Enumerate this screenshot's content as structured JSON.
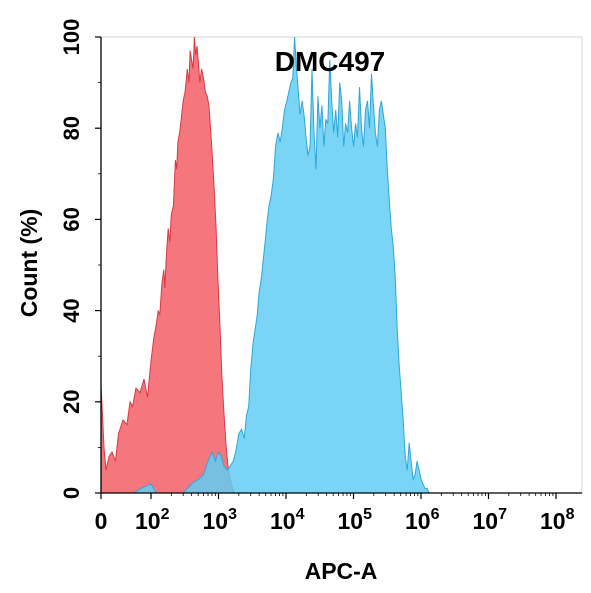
{
  "chart_data": {
    "type": "area",
    "title": "DMC497",
    "xlabel": "APC-A",
    "ylabel": "Count  (%)",
    "x_scale": "biexponential",
    "xlim": [
      0,
      100000000
    ],
    "ylim": [
      0,
      100
    ],
    "x_ticks": [
      {
        "value": 0,
        "base": "0",
        "exp": ""
      },
      {
        "value": 100,
        "base": "10",
        "exp": "2"
      },
      {
        "value": 1000,
        "base": "10",
        "exp": "3"
      },
      {
        "value": 10000,
        "base": "10",
        "exp": "4"
      },
      {
        "value": 100000,
        "base": "10",
        "exp": "5"
      },
      {
        "value": 1000000,
        "base": "10",
        "exp": "6"
      },
      {
        "value": 10000000,
        "base": "10",
        "exp": "7"
      },
      {
        "value": 100000000,
        "base": "10",
        "exp": "8"
      }
    ],
    "y_ticks": [
      0,
      20,
      40,
      60,
      80,
      100
    ],
    "grid": false,
    "series": [
      {
        "color": "#f4646b",
        "stroke": "#d83a44",
        "opacity": 0.88,
        "points": [
          [
            0,
            24
          ],
          [
            6,
            10
          ],
          [
            10,
            5
          ],
          [
            16,
            8
          ],
          [
            22,
            9
          ],
          [
            29,
            7
          ],
          [
            35,
            13
          ],
          [
            44,
            16
          ],
          [
            52,
            15
          ],
          [
            58,
            20
          ],
          [
            63,
            19
          ],
          [
            70,
            23
          ],
          [
            78,
            22
          ],
          [
            86,
            25
          ],
          [
            93,
            21
          ],
          [
            100,
            29
          ],
          [
            110,
            34
          ],
          [
            120,
            37
          ],
          [
            128,
            40
          ],
          [
            135,
            39
          ],
          [
            145,
            46
          ],
          [
            155,
            49
          ],
          [
            160,
            45
          ],
          [
            170,
            53
          ],
          [
            180,
            58
          ],
          [
            190,
            55
          ],
          [
            200,
            61
          ],
          [
            215,
            63
          ],
          [
            230,
            73
          ],
          [
            240,
            71
          ],
          [
            250,
            77
          ],
          [
            265,
            79
          ],
          [
            280,
            82
          ],
          [
            300,
            86
          ],
          [
            320,
            88
          ],
          [
            345,
            93
          ],
          [
            365,
            90
          ],
          [
            380,
            97
          ],
          [
            400,
            95
          ],
          [
            420,
            93
          ],
          [
            440,
            100
          ],
          [
            460,
            96
          ],
          [
            480,
            98
          ],
          [
            500,
            95
          ],
          [
            530,
            90
          ],
          [
            560,
            93
          ],
          [
            600,
            91
          ],
          [
            640,
            88
          ],
          [
            680,
            87
          ],
          [
            720,
            85
          ],
          [
            760,
            80
          ],
          [
            800,
            75
          ],
          [
            860,
            67
          ],
          [
            920,
            58
          ],
          [
            980,
            47
          ],
          [
            1050,
            37
          ],
          [
            1120,
            26
          ],
          [
            1200,
            18
          ],
          [
            1300,
            10
          ],
          [
            1400,
            5
          ],
          [
            1550,
            2
          ],
          [
            1700,
            0
          ]
        ]
      },
      {
        "color": "#62cdf3",
        "stroke": "#2ea7d8",
        "opacity": 0.85,
        "points": [
          [
            65,
            0
          ],
          [
            80,
            1
          ],
          [
            100,
            2
          ],
          [
            120,
            0
          ],
          [
            300,
            0
          ],
          [
            400,
            2
          ],
          [
            500,
            3
          ],
          [
            600,
            4
          ],
          [
            700,
            7
          ],
          [
            800,
            9
          ],
          [
            900,
            7
          ],
          [
            1000,
            9
          ],
          [
            1100,
            8
          ],
          [
            1200,
            6
          ],
          [
            1350,
            5
          ],
          [
            1500,
            6
          ],
          [
            1650,
            7
          ],
          [
            1800,
            9
          ],
          [
            2000,
            13
          ],
          [
            2200,
            14
          ],
          [
            2400,
            12
          ],
          [
            2600,
            17
          ],
          [
            2800,
            19
          ],
          [
            3000,
            27
          ],
          [
            3250,
            33
          ],
          [
            3500,
            36
          ],
          [
            3750,
            39
          ],
          [
            4000,
            44
          ],
          [
            4300,
            47
          ],
          [
            4600,
            51
          ],
          [
            4900,
            55
          ],
          [
            5200,
            59
          ],
          [
            5600,
            63
          ],
          [
            6000,
            65
          ],
          [
            6500,
            69
          ],
          [
            7000,
            76
          ],
          [
            7600,
            79
          ],
          [
            8200,
            77
          ],
          [
            8800,
            80
          ],
          [
            9500,
            84
          ],
          [
            10300,
            86
          ],
          [
            11000,
            88
          ],
          [
            11800,
            90
          ],
          [
            12600,
            91
          ],
          [
            13400,
            100
          ],
          [
            14300,
            93
          ],
          [
            15200,
            88
          ],
          [
            16200,
            83
          ],
          [
            17300,
            86
          ],
          [
            18500,
            83
          ],
          [
            19800,
            78
          ],
          [
            21200,
            74
          ],
          [
            22700,
            76
          ],
          [
            24300,
            93
          ],
          [
            26000,
            79
          ],
          [
            27800,
            71
          ],
          [
            29700,
            87
          ],
          [
            31800,
            80
          ],
          [
            34000,
            85
          ],
          [
            36400,
            76
          ],
          [
            38900,
            82
          ],
          [
            41600,
            81
          ],
          [
            44500,
            95
          ],
          [
            47600,
            86
          ],
          [
            50900,
            79
          ],
          [
            54500,
            84
          ],
          [
            58300,
            78
          ],
          [
            62400,
            90
          ],
          [
            66800,
            86
          ],
          [
            71500,
            76
          ],
          [
            76500,
            81
          ],
          [
            81900,
            79
          ],
          [
            87600,
            86
          ],
          [
            93700,
            80
          ],
          [
            100300,
            76
          ],
          [
            107300,
            81
          ],
          [
            114800,
            78
          ],
          [
            122900,
            89
          ],
          [
            131500,
            80
          ],
          [
            140700,
            76
          ],
          [
            150500,
            84
          ],
          [
            161100,
            86
          ],
          [
            172400,
            80
          ],
          [
            184500,
            92
          ],
          [
            197400,
            85
          ],
          [
            211200,
            79
          ],
          [
            226000,
            76
          ],
          [
            241800,
            84
          ],
          [
            258700,
            86
          ],
          [
            276800,
            83
          ],
          [
            296200,
            80
          ],
          [
            317000,
            71
          ],
          [
            339200,
            64
          ],
          [
            363000,
            58
          ],
          [
            388400,
            54
          ],
          [
            415600,
            47
          ],
          [
            444700,
            36
          ],
          [
            475800,
            28
          ],
          [
            509100,
            22
          ],
          [
            544800,
            16
          ],
          [
            583000,
            8
          ],
          [
            623800,
            5
          ],
          [
            667500,
            11
          ],
          [
            714300,
            7
          ],
          [
            764300,
            3
          ],
          [
            817800,
            4
          ],
          [
            875100,
            7
          ],
          [
            936400,
            5
          ],
          [
            1002000,
            3
          ],
          [
            1072000,
            2
          ],
          [
            1147000,
            1
          ],
          [
            1228000,
            1
          ],
          [
            1314000,
            0
          ],
          [
            1406000,
            0
          ]
        ]
      }
    ]
  }
}
